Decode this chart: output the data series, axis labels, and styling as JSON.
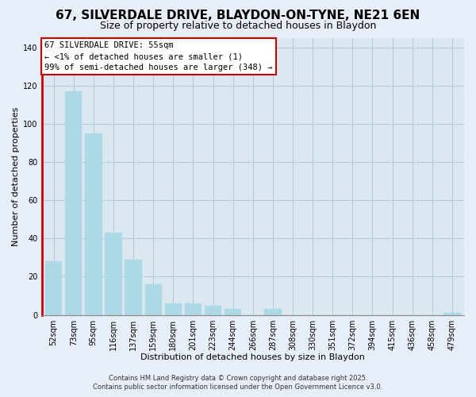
{
  "title": "67, SILVERDALE DRIVE, BLAYDON-ON-TYNE, NE21 6EN",
  "subtitle": "Size of property relative to detached houses in Blaydon",
  "xlabel": "Distribution of detached houses by size in Blaydon",
  "ylabel": "Number of detached properties",
  "footer_line1": "Contains HM Land Registry data © Crown copyright and database right 2025.",
  "footer_line2": "Contains public sector information licensed under the Open Government Licence v3.0.",
  "bar_labels": [
    "52sqm",
    "73sqm",
    "95sqm",
    "116sqm",
    "137sqm",
    "159sqm",
    "180sqm",
    "201sqm",
    "223sqm",
    "244sqm",
    "266sqm",
    "287sqm",
    "308sqm",
    "330sqm",
    "351sqm",
    "372sqm",
    "394sqm",
    "415sqm",
    "436sqm",
    "458sqm",
    "479sqm"
  ],
  "bar_values": [
    28,
    117,
    95,
    43,
    29,
    16,
    6,
    6,
    5,
    3,
    0,
    3,
    0,
    0,
    0,
    0,
    0,
    0,
    0,
    0,
    1
  ],
  "bar_color": "#add8e6",
  "highlight_color": "#cc0000",
  "ylim": [
    0,
    145
  ],
  "yticks": [
    0,
    20,
    40,
    60,
    80,
    100,
    120,
    140
  ],
  "annotation_title": "67 SILVERDALE DRIVE: 55sqm",
  "annotation_line1": "← <1% of detached houses are smaller (1)",
  "annotation_line2": "99% of semi-detached houses are larger (348) →",
  "bg_color": "#e8eef8",
  "plot_bg_color": "#dce8f0",
  "grid_color": "#b0c8d8",
  "title_fontsize": 11,
  "subtitle_fontsize": 9,
  "axis_label_fontsize": 8,
  "tick_fontsize": 7,
  "annotation_fontsize": 7.5
}
